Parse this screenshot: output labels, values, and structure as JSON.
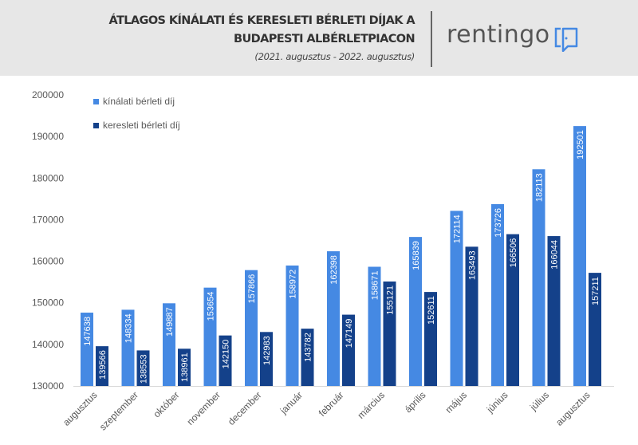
{
  "header": {
    "title_line1": "ÁTLAGOS KÍNÁLATI ÉS KERESLETI BÉRLETI DÍJAK A",
    "title_line2": "BUDAPESTI ALBÉRLETPIACON",
    "subtitle": "(2021. augusztus - 2022. augusztus)",
    "logo": "rentingo"
  },
  "chart_data": {
    "type": "bar",
    "categories": [
      "augusztus",
      "szeptember",
      "október",
      "november",
      "december",
      "január",
      "február",
      "március",
      "április",
      "május",
      "június",
      "július",
      "augusztus"
    ],
    "series": [
      {
        "name": "kínálati bérleti díj",
        "color": "#4589e3",
        "values": [
          147638,
          148334,
          149887,
          153654,
          157866,
          158972,
          162398,
          158671,
          165839,
          172114,
          173726,
          182113,
          192501
        ]
      },
      {
        "name": "keresleti bérleti díj",
        "color": "#14418a",
        "values": [
          139566,
          138553,
          138961,
          142150,
          142983,
          143782,
          147149,
          155121,
          152611,
          163493,
          166506,
          166044,
          157211
        ]
      }
    ],
    "ylim": [
      130000,
      200000
    ],
    "yticks": [
      130000,
      140000,
      150000,
      160000,
      170000,
      180000,
      190000,
      200000
    ],
    "grid": false,
    "legend": "top-left",
    "data_labels": true
  }
}
